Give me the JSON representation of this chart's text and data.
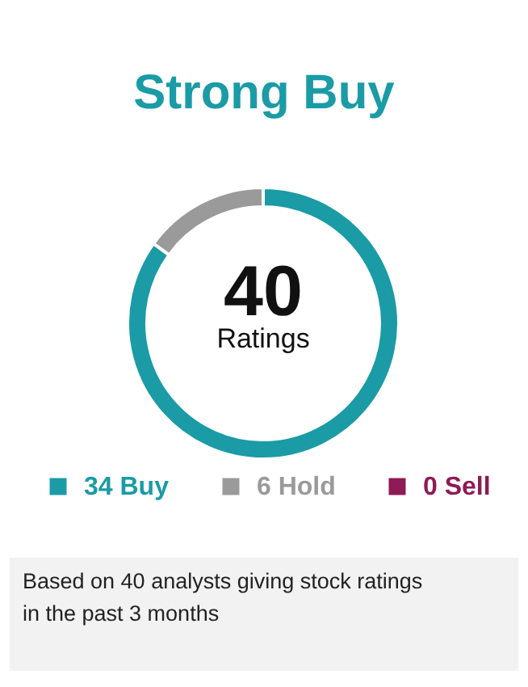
{
  "chart_data": {
    "type": "donut",
    "title": "Strong Buy",
    "categories": [
      "34 Buy",
      "6 Hold",
      "0 Sell"
    ],
    "values": [
      34,
      6,
      0
    ],
    "colors": [
      "#1a9ba6",
      "#9a9a9a",
      "#8e1b55"
    ],
    "legend": "bottom",
    "annotations": [
      "40",
      "Ratings",
      "Based on 40 analysts giving stock ratings in the past 3 months"
    ]
  }
}
